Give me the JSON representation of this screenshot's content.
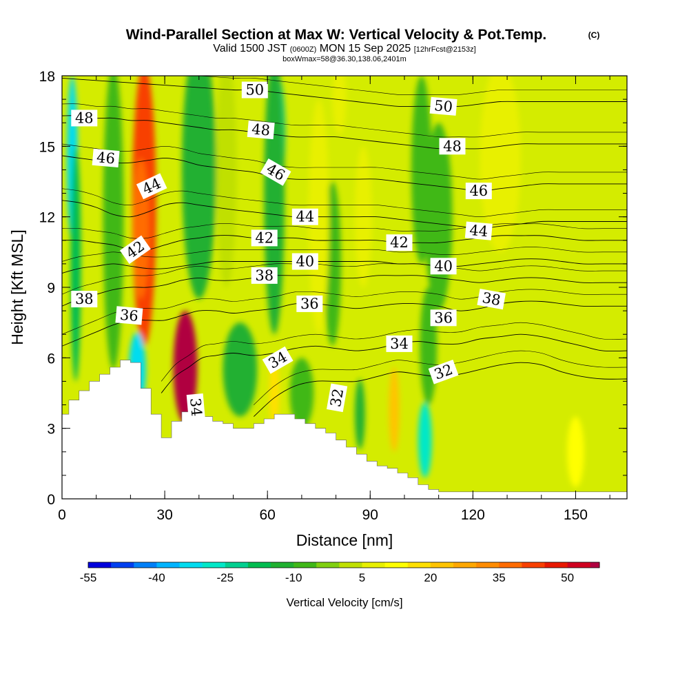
{
  "chart_data": {
    "type": "heatmap",
    "title": "Wind-Parallel Section at Max W: Vertical Velocity & Pot.Temp.",
    "title_tag": "(C)",
    "subtitle_parts": [
      "Valid 1500 JST ",
      "(0600Z)",
      " MON 15 Sep 2025 ",
      "[12hrFcst@2153z]"
    ],
    "subtitle_line2": "boxWmax=58@36.30,138.06,2401m",
    "xlabel": "Distance [nm]",
    "ylabel": "Height [Kft MSL]",
    "xlim": [
      0,
      165
    ],
    "ylim": [
      0,
      18
    ],
    "x_ticks": [
      0,
      30,
      60,
      90,
      120,
      150
    ],
    "x_tick_labels": [
      "0",
      "30",
      "60",
      "90",
      "120",
      "150"
    ],
    "y_ticks": [
      0,
      3,
      6,
      9,
      12,
      15,
      18
    ],
    "y_tick_labels": [
      "0",
      "3",
      "6",
      "9",
      "12",
      "15",
      "18"
    ],
    "colorbar": {
      "label": "Vertical Velocity [cm/s]",
      "tick_values": [
        -55,
        -40,
        -25,
        -10,
        5,
        20,
        35,
        50
      ],
      "tick_labels": [
        "-55",
        "-40",
        "-25",
        "-10",
        "5",
        "20",
        "35",
        "50"
      ],
      "range": [
        -55,
        57
      ],
      "step": 5,
      "colors": [
        "#0000dc",
        "#0040f0",
        "#0080f8",
        "#00b4ff",
        "#00dcf0",
        "#00e8c8",
        "#00d090",
        "#00bc50",
        "#20b030",
        "#40b818",
        "#80d010",
        "#c0e000",
        "#e8f000",
        "#ffff00",
        "#ffe000",
        "#ffc400",
        "#ffa800",
        "#ff8c00",
        "#ff6c00",
        "#f84000",
        "#e81800",
        "#d00020",
        "#b00040",
        "#900060",
        "#6a0080"
      ]
    },
    "terrain_profile": {
      "x": [
        0,
        2,
        5,
        8,
        11,
        14,
        17,
        20,
        23,
        26,
        29,
        32,
        35,
        38,
        41,
        44,
        47,
        50,
        53,
        56,
        59,
        62,
        65,
        68,
        71,
        74,
        77,
        80,
        83,
        86,
        89,
        92,
        95,
        98,
        101,
        104,
        107,
        110,
        165
      ],
      "z": [
        3.6,
        4.2,
        4.6,
        5.0,
        5.3,
        5.6,
        5.9,
        5.8,
        4.7,
        3.6,
        2.6,
        3.3,
        3.7,
        3.6,
        3.5,
        3.3,
        3.2,
        3.0,
        3.0,
        3.2,
        3.4,
        3.6,
        3.6,
        3.4,
        3.2,
        3.0,
        2.8,
        2.5,
        2.2,
        1.9,
        1.6,
        1.4,
        1.3,
        1.1,
        0.9,
        0.6,
        0.4,
        0.3,
        0.3
      ]
    },
    "vertical_velocity_features": [
      {
        "x": 24,
        "z": 12.5,
        "rx": 3.5,
        "rz": 6.0,
        "w": 40
      },
      {
        "x": 23,
        "z": 11.5,
        "rx": 2.5,
        "rz": 3.0,
        "w": 35
      },
      {
        "x": 36,
        "z": 5.6,
        "rx": 3.5,
        "rz": 2.4,
        "w": 57
      },
      {
        "x": 36,
        "z": 5.6,
        "rx": 2.2,
        "rz": 1.4,
        "w": 57
      },
      {
        "x": 22,
        "z": 5.5,
        "rx": 2.5,
        "rz": 1.6,
        "w": -35
      },
      {
        "x": 3,
        "z": 14.5,
        "rx": 1.6,
        "rz": 3.5,
        "w": -35
      },
      {
        "x": 4,
        "z": 10.0,
        "rx": 1.5,
        "rz": 5.0,
        "w": -18
      },
      {
        "x": 15,
        "z": 12.0,
        "rx": 3.0,
        "rz": 6.5,
        "w": -10
      },
      {
        "x": 40,
        "z": 14.0,
        "rx": 5.0,
        "rz": 5.5,
        "w": -15
      },
      {
        "x": 63,
        "z": 15.5,
        "rx": 2.2,
        "rz": 2.5,
        "w": -22
      },
      {
        "x": 62,
        "z": 13.0,
        "rx": 3.0,
        "rz": 6.0,
        "w": -12
      },
      {
        "x": 52,
        "z": 5.5,
        "rx": 5.0,
        "rz": 2.0,
        "w": -12
      },
      {
        "x": 70,
        "z": 4.5,
        "rx": 3.5,
        "rz": 1.5,
        "w": -10
      },
      {
        "x": 79,
        "z": 10.0,
        "rx": 2.5,
        "rz": 3.5,
        "w": -8
      },
      {
        "x": 87,
        "z": 3.6,
        "rx": 1.5,
        "rz": 1.5,
        "w": -14
      },
      {
        "x": 106,
        "z": 2.5,
        "rx": 2.0,
        "rz": 1.6,
        "w": -30
      },
      {
        "x": 107,
        "z": 6.5,
        "rx": 2.5,
        "rz": 2.5,
        "w": -8
      },
      {
        "x": 105,
        "z": 14.0,
        "rx": 3.0,
        "rz": 4.0,
        "w": -10
      },
      {
        "x": 110,
        "z": 12.0,
        "rx": 4.0,
        "rz": 4.0,
        "w": -10
      },
      {
        "x": 48,
        "z": 14.0,
        "rx": 3.0,
        "rz": 5.0,
        "w": 3
      },
      {
        "x": 75,
        "z": 12.0,
        "rx": 3.0,
        "rz": 5.0,
        "w": 5
      },
      {
        "x": 97,
        "z": 3.8,
        "rx": 1.5,
        "rz": 1.8,
        "w": 22
      },
      {
        "x": 81,
        "z": 17.0,
        "rx": 2.0,
        "rz": 1.5,
        "w": 8
      },
      {
        "x": 88,
        "z": 12.0,
        "rx": 2.5,
        "rz": 3.0,
        "w": 5
      },
      {
        "x": 150,
        "z": 2.0,
        "rx": 2.5,
        "rz": 1.5,
        "w": 10
      },
      {
        "x": 62,
        "z": 4.5,
        "rx": 1.5,
        "rz": 1.5,
        "w": 15
      },
      {
        "x": 128,
        "z": 14.5,
        "rx": 6.0,
        "rz": 4.0,
        "w": 6
      }
    ],
    "theta_contour_labels": [
      {
        "text": "50",
        "x": 56.3,
        "z": 17.4,
        "angle": 0
      },
      {
        "text": "48",
        "x": 58.1,
        "z": 15.7,
        "angle": 5
      },
      {
        "text": "46",
        "x": 62.4,
        "z": 13.9,
        "angle": 30
      },
      {
        "text": "44",
        "x": 71.0,
        "z": 12.0,
        "angle": 0
      },
      {
        "text": "42",
        "x": 59.1,
        "z": 11.1,
        "angle": 0
      },
      {
        "text": "40",
        "x": 71.0,
        "z": 10.1,
        "angle": 0
      },
      {
        "text": "38",
        "x": 59.1,
        "z": 9.5,
        "angle": 0
      },
      {
        "text": "36",
        "x": 72.3,
        "z": 8.3,
        "angle": 0
      },
      {
        "text": "34",
        "x": 63.0,
        "z": 5.9,
        "angle": -30
      },
      {
        "text": "32",
        "x": 80.3,
        "z": 4.3,
        "angle": -80
      },
      {
        "text": "34",
        "x": 39.1,
        "z": 3.9,
        "angle": 85
      },
      {
        "text": "48",
        "x": 6.5,
        "z": 16.2,
        "angle": 0
      },
      {
        "text": "46",
        "x": 12.8,
        "z": 14.5,
        "angle": 5
      },
      {
        "text": "44",
        "x": 26.2,
        "z": 13.3,
        "angle": -25
      },
      {
        "text": "42",
        "x": 21.4,
        "z": 10.6,
        "angle": -35
      },
      {
        "text": "38",
        "x": 6.5,
        "z": 8.5,
        "angle": 0
      },
      {
        "text": "36",
        "x": 19.6,
        "z": 7.8,
        "angle": 5
      },
      {
        "text": "50",
        "x": 111.4,
        "z": 16.7,
        "angle": 5
      },
      {
        "text": "48",
        "x": 114.0,
        "z": 15.0,
        "angle": 0
      },
      {
        "text": "46",
        "x": 121.7,
        "z": 13.1,
        "angle": 0
      },
      {
        "text": "44",
        "x": 121.7,
        "z": 11.4,
        "angle": 5
      },
      {
        "text": "42",
        "x": 98.5,
        "z": 10.9,
        "angle": 0
      },
      {
        "text": "40",
        "x": 111.4,
        "z": 9.9,
        "angle": 0
      },
      {
        "text": "38",
        "x": 125.4,
        "z": 8.5,
        "angle": 10
      },
      {
        "text": "36",
        "x": 111.4,
        "z": 7.7,
        "angle": 0
      },
      {
        "text": "34",
        "x": 98.5,
        "z": 6.6,
        "angle": 0
      },
      {
        "text": "32",
        "x": 111.4,
        "z": 5.4,
        "angle": -20
      }
    ],
    "theta_isentropes": [
      {
        "value": 32,
        "x": [
          56,
          62,
          68,
          74,
          80,
          86,
          92,
          98,
          104,
          110,
          116,
          122,
          128,
          134,
          140,
          146,
          152,
          158,
          165
        ],
        "z": [
          3.5,
          4.3,
          4.8,
          5.0,
          5.0,
          5.0,
          5.2,
          5.4,
          5.3,
          5.2,
          5.3,
          5.5,
          5.7,
          5.8,
          5.7,
          5.4,
          5.2,
          5.1,
          5.1
        ]
      },
      {
        "value": 34,
        "x": [
          29,
          33,
          37,
          41,
          45,
          50,
          56,
          62,
          68,
          74,
          80,
          86,
          92,
          98,
          104,
          110,
          116,
          122,
          128,
          134,
          140,
          146,
          152,
          158,
          165
        ],
        "z": [
          4.5,
          5.2,
          5.6,
          6.0,
          6.1,
          6.2,
          6.1,
          6.2,
          6.4,
          6.5,
          6.4,
          6.3,
          6.4,
          6.6,
          6.7,
          6.6,
          6.6,
          6.8,
          6.9,
          7.0,
          6.9,
          6.7,
          6.5,
          6.3,
          6.3
        ]
      },
      {
        "value": 36,
        "x": [
          0,
          5,
          10,
          15,
          20,
          25,
          30,
          35,
          40,
          45,
          50,
          56,
          62,
          68,
          74,
          80,
          86,
          92,
          98,
          104,
          110,
          116,
          122,
          128,
          134,
          140,
          146,
          152,
          158,
          165
        ],
        "z": [
          6.5,
          6.8,
          7.1,
          7.4,
          7.6,
          7.6,
          7.6,
          7.8,
          8.0,
          8.0,
          7.9,
          8.0,
          8.1,
          8.3,
          8.3,
          8.2,
          8.1,
          8.2,
          8.3,
          8.3,
          8.2,
          8.0,
          8.1,
          8.3,
          8.4,
          8.4,
          8.3,
          8.2,
          8.2,
          8.2
        ]
      },
      {
        "value": 38,
        "x": [
          0,
          5,
          10,
          15,
          20,
          25,
          30,
          35,
          40,
          45,
          50,
          56,
          62,
          68,
          74,
          80,
          86,
          92,
          98,
          104,
          110,
          116,
          122,
          128,
          134,
          140,
          146,
          152,
          158,
          165
        ],
        "z": [
          8.2,
          8.5,
          8.7,
          8.9,
          9.0,
          9.0,
          9.1,
          9.3,
          9.4,
          9.3,
          9.3,
          9.4,
          9.5,
          9.5,
          9.5,
          9.4,
          9.4,
          9.5,
          9.5,
          9.5,
          9.4,
          9.3,
          9.2,
          9.3,
          9.4,
          9.4,
          9.3,
          9.2,
          9.2,
          9.2
        ]
      },
      {
        "value": 40,
        "x": [
          0,
          5,
          10,
          15,
          20,
          25,
          30,
          35,
          40,
          45,
          50,
          56,
          62,
          68,
          74,
          80,
          86,
          92,
          98,
          104,
          110,
          116,
          122,
          128,
          134,
          140,
          146,
          152,
          158,
          165
        ],
        "z": [
          9.6,
          9.8,
          9.9,
          10.0,
          9.9,
          9.8,
          9.8,
          9.9,
          10.0,
          10.1,
          10.1,
          10.1,
          10.1,
          10.1,
          10.1,
          10.1,
          10.1,
          10.1,
          10.0,
          10.0,
          9.9,
          9.9,
          10.0,
          10.1,
          10.2,
          10.2,
          10.1,
          10.0,
          10.0,
          10.0
        ]
      },
      {
        "value": 42,
        "x": [
          0,
          5,
          10,
          15,
          20,
          25,
          30,
          35,
          40,
          45,
          50,
          56,
          62,
          68,
          74,
          80,
          86,
          92,
          98,
          104,
          110,
          116,
          122,
          128,
          134,
          140,
          146,
          152,
          158,
          165
        ],
        "z": [
          11.0,
          11.0,
          10.9,
          10.8,
          10.6,
          10.6,
          10.8,
          11.0,
          11.1,
          11.2,
          11.2,
          11.1,
          11.1,
          11.1,
          11.0,
          11.0,
          11.0,
          11.0,
          10.9,
          10.9,
          10.9,
          11.0,
          11.1,
          11.2,
          11.2,
          11.2,
          11.1,
          11.0,
          11.0,
          11.0
        ]
      },
      {
        "value": 44,
        "x": [
          0,
          5,
          10,
          15,
          20,
          25,
          30,
          35,
          40,
          45,
          50,
          56,
          62,
          68,
          74,
          80,
          86,
          92,
          98,
          104,
          110,
          116,
          122,
          128,
          134,
          140,
          146,
          152,
          158,
          165
        ],
        "z": [
          12.7,
          12.6,
          12.4,
          12.1,
          12.0,
          12.2,
          12.5,
          12.6,
          12.5,
          12.4,
          12.3,
          12.2,
          12.1,
          12.0,
          12.0,
          12.0,
          12.0,
          12.0,
          11.9,
          11.8,
          11.7,
          11.6,
          11.5,
          11.6,
          11.7,
          11.8,
          11.8,
          11.8,
          11.8,
          11.8
        ]
      },
      {
        "value": 46,
        "x": [
          0,
          5,
          10,
          15,
          20,
          25,
          30,
          35,
          40,
          45,
          50,
          56,
          62,
          68,
          74,
          80,
          86,
          92,
          98,
          104,
          110,
          116,
          122,
          128,
          134,
          140,
          146,
          152,
          158,
          165
        ],
        "z": [
          14.6,
          14.5,
          14.4,
          14.3,
          14.3,
          14.4,
          14.5,
          14.4,
          14.2,
          14.1,
          14.0,
          13.9,
          13.7,
          13.6,
          13.6,
          13.6,
          13.6,
          13.6,
          13.5,
          13.4,
          13.3,
          13.2,
          13.1,
          13.2,
          13.3,
          13.4,
          13.4,
          13.4,
          13.4,
          13.4
        ]
      },
      {
        "value": 48,
        "x": [
          0,
          5,
          10,
          15,
          20,
          25,
          30,
          35,
          40,
          45,
          50,
          56,
          62,
          68,
          74,
          80,
          86,
          92,
          98,
          104,
          110,
          116,
          122,
          128,
          134,
          140,
          146,
          152,
          158,
          165
        ],
        "z": [
          16.3,
          16.3,
          16.2,
          16.2,
          16.1,
          16.1,
          16.0,
          15.9,
          15.8,
          15.7,
          15.7,
          15.6,
          15.5,
          15.4,
          15.4,
          15.4,
          15.3,
          15.2,
          15.1,
          15.0,
          14.9,
          14.9,
          14.9,
          15.0,
          15.1,
          15.1,
          15.1,
          15.1,
          15.1,
          15.1
        ]
      },
      {
        "value": 50,
        "x": [
          0,
          10,
          20,
          30,
          40,
          50,
          56,
          62,
          68,
          74,
          80,
          86,
          92,
          98,
          104,
          110,
          116,
          122,
          128,
          134,
          140,
          146,
          152,
          158,
          165
        ],
        "z": [
          17.9,
          17.8,
          17.7,
          17.6,
          17.5,
          17.4,
          17.4,
          17.3,
          17.2,
          17.1,
          17.0,
          16.9,
          16.8,
          16.7,
          16.7,
          16.7,
          16.7,
          16.8,
          16.9,
          16.9,
          16.9,
          16.9,
          16.9,
          16.9,
          16.9
        ]
      }
    ]
  }
}
